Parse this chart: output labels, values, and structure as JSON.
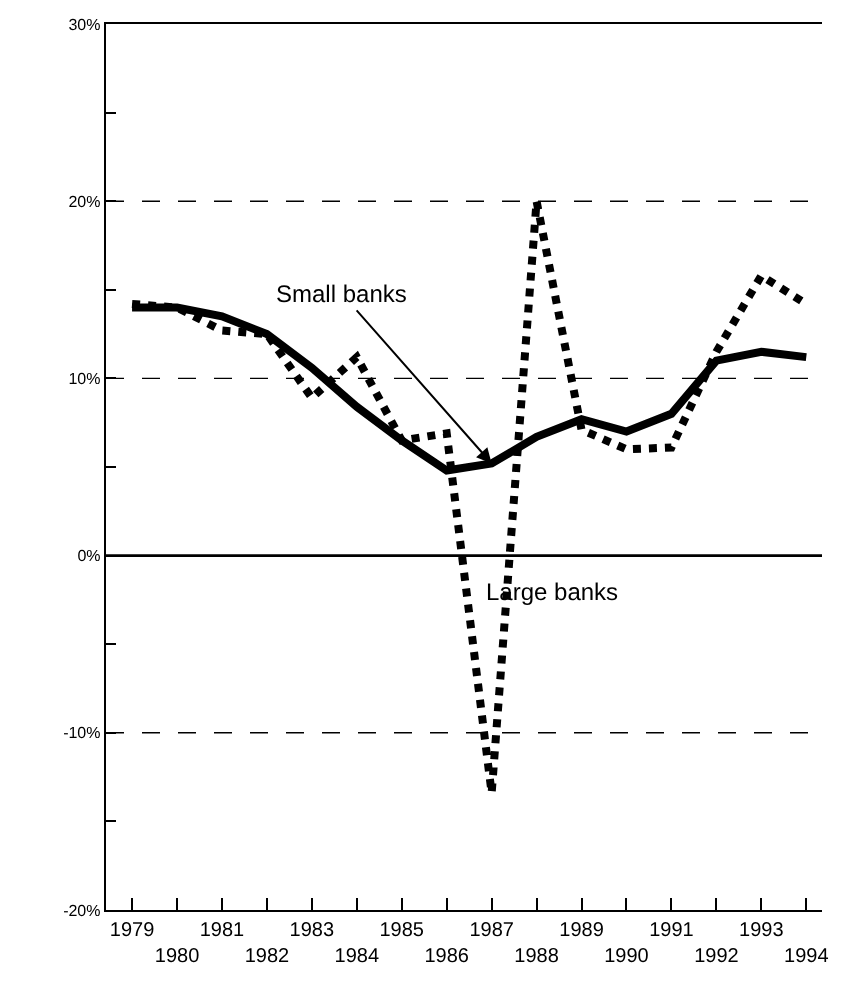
{
  "chart_data": {
    "type": "line",
    "categories": [
      "1979",
      "1980",
      "1981",
      "1982",
      "1983",
      "1984",
      "1985",
      "1986",
      "1987",
      "1988",
      "1989",
      "1990",
      "1991",
      "1992",
      "1993",
      "1994"
    ],
    "series": [
      {
        "color": "#000000",
        "line_style": "solid",
        "values": [
          14.0,
          14.0,
          13.5,
          12.5,
          10.6,
          8.4,
          6.5,
          4.8,
          5.2,
          6.7,
          7.7,
          7.0,
          8.0,
          11.0,
          11.5,
          11.2
        ]
      },
      {
        "color": "#000000",
        "line_style": "dotted",
        "values": [
          14.2,
          14.0,
          12.7,
          12.5,
          8.9,
          11.2,
          6.5,
          6.9,
          -13.4,
          20,
          7.1,
          6.0,
          6.1,
          11.5,
          15.8,
          14.2
        ]
      }
    ],
    "ylim": [
      -20,
      30
    ],
    "yticks": [
      {
        "value": -20,
        "label": "-20%"
      },
      {
        "value": -15,
        "label": null
      },
      {
        "value": -10,
        "label": "-10%"
      },
      {
        "value": -5,
        "label": null
      },
      {
        "value": 0,
        "label": "0%"
      },
      {
        "value": 5,
        "label": null
      },
      {
        "value": 10,
        "label": "10%"
      },
      {
        "value": 15,
        "label": null
      },
      {
        "value": 20,
        "label": "20%"
      },
      {
        "value": 25,
        "label": null
      },
      {
        "value": 30,
        "label": "30%"
      }
    ],
    "grid": "y",
    "ref_lines": [
      {
        "axis": "y",
        "value": 0,
        "line_style": "solid"
      }
    ],
    "marker": "none",
    "annotations": [
      {
        "text": "Small banks",
        "x": "1987",
        "y": 5.2
      },
      "Large banks"
    ]
  }
}
